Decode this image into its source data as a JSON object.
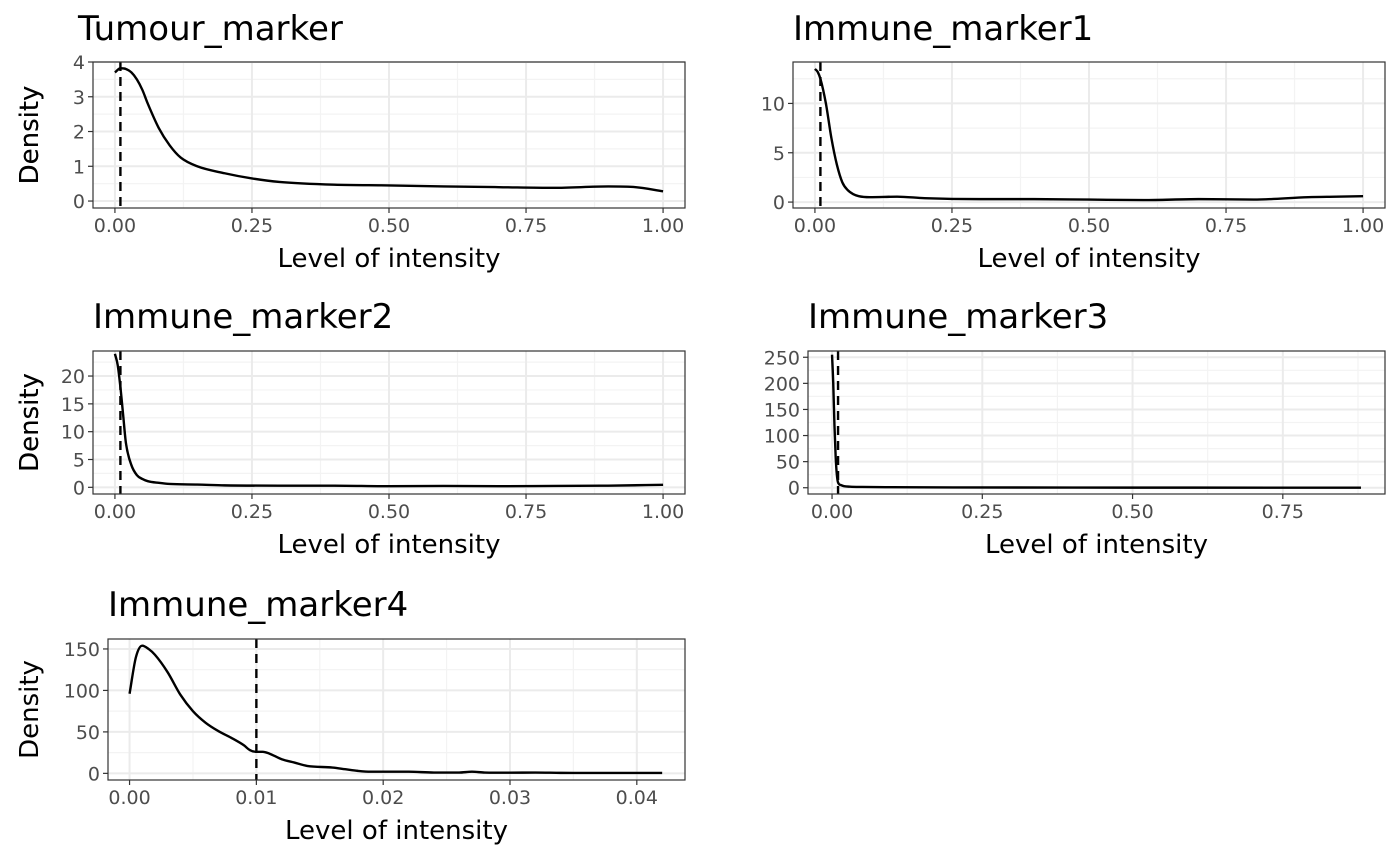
{
  "chart_data": [
    {
      "type": "line",
      "title": "Tumour_marker",
      "xlabel": "Level of intensity",
      "ylabel": "Density",
      "xlim": [
        -0.04,
        1.04
      ],
      "ylim": [
        -0.2,
        4.0
      ],
      "xticks": [
        0,
        0.25,
        0.5,
        0.75,
        1
      ],
      "xtick_labels": [
        "0.00",
        "0.25",
        "0.50",
        "0.75",
        "1.00"
      ],
      "yticks": [
        0,
        1,
        2,
        3,
        4
      ],
      "ytick_labels": [
        "0",
        "1",
        "2",
        "3",
        "4"
      ],
      "grid": true,
      "threshold": 0.01,
      "series": [
        {
          "x": [
            0,
            0.01,
            0.02,
            0.03,
            0.04,
            0.05,
            0.06,
            0.08,
            0.1,
            0.12,
            0.15,
            0.2,
            0.25,
            0.3,
            0.4,
            0.5,
            0.6,
            0.7,
            0.8,
            0.9,
            0.95,
            1.0
          ],
          "y": [
            3.7,
            3.82,
            3.8,
            3.7,
            3.5,
            3.2,
            2.8,
            2.1,
            1.6,
            1.25,
            1.0,
            0.8,
            0.65,
            0.55,
            0.47,
            0.45,
            0.42,
            0.4,
            0.38,
            0.42,
            0.4,
            0.28
          ]
        }
      ]
    },
    {
      "type": "line",
      "title": "Immune_marker1",
      "xlabel": "Level of intensity",
      "ylabel": "Density",
      "xlim": [
        -0.04,
        1.04
      ],
      "ylim": [
        -0.6,
        14.2
      ],
      "xticks": [
        0,
        0.25,
        0.5,
        0.75,
        1
      ],
      "xtick_labels": [
        "0.00",
        "0.25",
        "0.50",
        "0.75",
        "1.00"
      ],
      "yticks": [
        0,
        5,
        10
      ],
      "ytick_labels": [
        "0",
        "5",
        "10"
      ],
      "grid": true,
      "threshold": 0.01,
      "series": [
        {
          "x": [
            0,
            0.005,
            0.01,
            0.02,
            0.03,
            0.04,
            0.05,
            0.06,
            0.07,
            0.08,
            0.1,
            0.15,
            0.2,
            0.3,
            0.4,
            0.5,
            0.6,
            0.7,
            0.8,
            0.9,
            0.95,
            1.0
          ],
          "y": [
            13.5,
            13.2,
            12.5,
            10.0,
            6.5,
            3.8,
            2.0,
            1.2,
            0.8,
            0.6,
            0.5,
            0.55,
            0.4,
            0.3,
            0.3,
            0.25,
            0.2,
            0.3,
            0.25,
            0.5,
            0.55,
            0.6
          ]
        }
      ]
    },
    {
      "type": "line",
      "title": "Immune_marker2",
      "xlabel": "Level of intensity",
      "ylabel": "Density",
      "xlim": [
        -0.04,
        1.04
      ],
      "ylim": [
        -1.2,
        24.5
      ],
      "xticks": [
        0,
        0.25,
        0.5,
        0.75,
        1
      ],
      "xtick_labels": [
        "0.00",
        "0.25",
        "0.50",
        "0.75",
        "1.00"
      ],
      "yticks": [
        0,
        5,
        10,
        15,
        20
      ],
      "ytick_labels": [
        "0",
        "5",
        "10",
        "15",
        "20"
      ],
      "grid": true,
      "threshold": 0.01,
      "series": [
        {
          "x": [
            0,
            0.005,
            0.01,
            0.015,
            0.02,
            0.03,
            0.04,
            0.05,
            0.06,
            0.08,
            0.1,
            0.15,
            0.2,
            0.3,
            0.4,
            0.5,
            0.6,
            0.7,
            0.8,
            0.9,
            1.0
          ],
          "y": [
            24,
            22,
            18,
            13,
            8,
            4,
            2.2,
            1.5,
            1.1,
            0.8,
            0.6,
            0.5,
            0.35,
            0.3,
            0.3,
            0.2,
            0.25,
            0.2,
            0.25,
            0.3,
            0.45
          ]
        }
      ]
    },
    {
      "type": "line",
      "title": "Immune_marker3",
      "xlabel": "Level of intensity",
      "ylabel": "Density",
      "xlim": [
        -0.04,
        0.92
      ],
      "ylim": [
        -12,
        262
      ],
      "xticks": [
        0,
        0.25,
        0.5,
        0.75
      ],
      "xtick_labels": [
        "0.00",
        "0.25",
        "0.50",
        "0.75"
      ],
      "yticks": [
        0,
        50,
        100,
        150,
        200,
        250
      ],
      "ytick_labels": [
        "0",
        "50",
        "100",
        "150",
        "200",
        "250"
      ],
      "grid": true,
      "threshold": 0.01,
      "series": [
        {
          "x": [
            0,
            0.002,
            0.004,
            0.006,
            0.008,
            0.01,
            0.015,
            0.02,
            0.03,
            0.05,
            0.1,
            0.2,
            0.4,
            0.6,
            0.88
          ],
          "y": [
            255,
            200,
            120,
            60,
            25,
            10,
            5,
            3,
            2,
            1.5,
            1,
            0.6,
            0.3,
            0.2,
            0.1
          ]
        }
      ]
    },
    {
      "type": "line",
      "title": "Immune_marker4",
      "xlabel": "Level of intensity",
      "ylabel": "Density",
      "xlim": [
        -0.0017,
        0.0438
      ],
      "ylim": [
        -8,
        162
      ],
      "xticks": [
        0,
        0.01,
        0.02,
        0.03,
        0.04
      ],
      "xtick_labels": [
        "0.00",
        "0.01",
        "0.02",
        "0.03",
        "0.04"
      ],
      "yticks": [
        0,
        50,
        100,
        150
      ],
      "ytick_labels": [
        "0",
        "50",
        "100",
        "150"
      ],
      "grid": true,
      "threshold": 0.01,
      "series": [
        {
          "x": [
            0,
            0.0005,
            0.001,
            0.0015,
            0.002,
            0.003,
            0.004,
            0.005,
            0.006,
            0.007,
            0.008,
            0.009,
            0.0095,
            0.01,
            0.0105,
            0.011,
            0.012,
            0.013,
            0.014,
            0.016,
            0.017,
            0.018,
            0.019,
            0.02,
            0.022,
            0.024,
            0.026,
            0.027,
            0.028,
            0.03,
            0.032,
            0.034,
            0.036,
            0.04,
            0.042
          ],
          "y": [
            96,
            140,
            154,
            150,
            143,
            122,
            95,
            75,
            61,
            51,
            43,
            34,
            28,
            26,
            26,
            24,
            17,
            13,
            9,
            7,
            5,
            3,
            2,
            2,
            2,
            1,
            1,
            2,
            1,
            0.8,
            1,
            0.6,
            0.5,
            0.5,
            0.5
          ]
        }
      ]
    }
  ]
}
